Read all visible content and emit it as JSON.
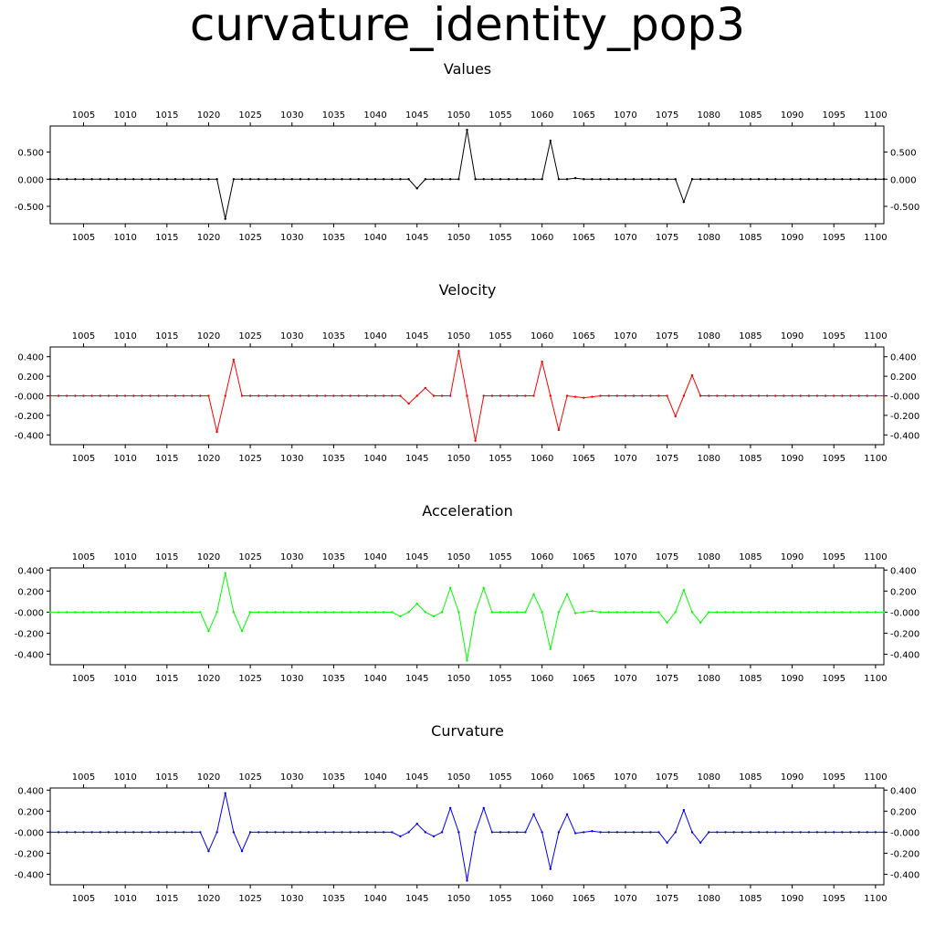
{
  "title": "curvature_identity_pop3",
  "chart_data": [
    {
      "type": "line",
      "title": "Values",
      "color": "#000000",
      "xlim": [
        1001,
        1101
      ],
      "ylim": [
        -0.82,
        0.98
      ],
      "xticks": [
        1005,
        1010,
        1015,
        1020,
        1025,
        1030,
        1035,
        1040,
        1045,
        1050,
        1055,
        1060,
        1065,
        1070,
        1075,
        1080,
        1085,
        1090,
        1095,
        1100
      ],
      "yticks": [
        0.5,
        0.0,
        -0.5
      ],
      "ytick_labels": [
        "0.500",
        "0.000",
        "-0.500"
      ],
      "series": [
        {
          "x_start": 1001,
          "values": [
            0,
            0,
            0,
            0,
            0,
            0,
            0,
            0,
            0,
            0,
            0,
            0,
            0,
            0,
            0,
            0,
            0,
            0,
            0,
            0,
            0,
            -0.73,
            0,
            0,
            0,
            0,
            0,
            0,
            0,
            0,
            0,
            0,
            0,
            0,
            0,
            0,
            0,
            0,
            0,
            0,
            0,
            0,
            0,
            0,
            -0.17,
            0,
            0,
            0,
            0,
            0,
            0.91,
            0,
            0,
            0,
            0,
            0,
            0,
            0,
            0,
            0,
            0.71,
            0,
            0,
            0.02,
            0,
            0,
            0,
            0,
            0,
            0,
            0,
            0,
            0,
            0,
            0,
            0,
            -0.42,
            0,
            0,
            0,
            0,
            0,
            0,
            0,
            0,
            0,
            0,
            0,
            0,
            0,
            0,
            0,
            0,
            0,
            0,
            0,
            0,
            0,
            0,
            0,
            0
          ]
        }
      ]
    },
    {
      "type": "line",
      "title": "Velocity",
      "color": "#ff0000",
      "xlim": [
        1001,
        1101
      ],
      "ylim": [
        -0.5,
        0.5
      ],
      "xticks": [
        1005,
        1010,
        1015,
        1020,
        1025,
        1030,
        1035,
        1040,
        1045,
        1050,
        1055,
        1060,
        1065,
        1070,
        1075,
        1080,
        1085,
        1090,
        1095,
        1100
      ],
      "yticks": [
        0.4,
        0.2,
        0.0,
        -0.2,
        -0.4
      ],
      "ytick_labels": [
        "0.400",
        "0.200",
        "-0.000",
        "-0.200",
        "-0.400"
      ],
      "series": [
        {
          "x_start": 1001,
          "values": [
            0,
            0,
            0,
            0,
            0,
            0,
            0,
            0,
            0,
            0,
            0,
            0,
            0,
            0,
            0,
            0,
            0,
            0,
            0,
            0,
            -0.37,
            0,
            0.37,
            0,
            0,
            0,
            0,
            0,
            0,
            0,
            0,
            0,
            0,
            0,
            0,
            0,
            0,
            0,
            0,
            0,
            0,
            0,
            0,
            -0.08,
            0,
            0.08,
            0,
            0,
            0,
            0.46,
            0,
            -0.46,
            0,
            0,
            0,
            0,
            0,
            0,
            0,
            0.35,
            0,
            -0.35,
            0,
            -0.01,
            -0.02,
            -0.01,
            0,
            0,
            0,
            0,
            0,
            0,
            0,
            0,
            0,
            -0.21,
            0,
            0.21,
            0,
            0,
            0,
            0,
            0,
            0,
            0,
            0,
            0,
            0,
            0,
            0,
            0,
            0,
            0,
            0,
            0,
            0,
            0,
            0,
            0,
            0,
            0
          ]
        }
      ]
    },
    {
      "type": "line",
      "title": "Acceleration",
      "color": "#00ff00",
      "xlim": [
        1001,
        1101
      ],
      "ylim": [
        -0.5,
        0.42
      ],
      "xticks": [
        1005,
        1010,
        1015,
        1020,
        1025,
        1030,
        1035,
        1040,
        1045,
        1050,
        1055,
        1060,
        1065,
        1070,
        1075,
        1080,
        1085,
        1090,
        1095,
        1100
      ],
      "yticks": [
        0.4,
        0.2,
        0.0,
        -0.2,
        -0.4
      ],
      "ytick_labels": [
        "0.400",
        "0.200",
        "-0.000",
        "-0.200",
        "-0.400"
      ],
      "series": [
        {
          "x_start": 1001,
          "values": [
            0,
            0,
            0,
            0,
            0,
            0,
            0,
            0,
            0,
            0,
            0,
            0,
            0,
            0,
            0,
            0,
            0,
            0,
            0,
            -0.18,
            0,
            0.37,
            0,
            -0.18,
            0,
            0,
            0,
            0,
            0,
            0,
            0,
            0,
            0,
            0,
            0,
            0,
            0,
            0,
            0,
            0,
            0,
            0,
            -0.04,
            0,
            0.08,
            0,
            -0.04,
            0,
            0.23,
            0,
            -0.46,
            0,
            0.23,
            0,
            0,
            0,
            0,
            0,
            0.17,
            0,
            -0.35,
            0,
            0.17,
            -0.01,
            0,
            0.01,
            0,
            0,
            0,
            0,
            0,
            0,
            0,
            0,
            -0.1,
            0,
            0.21,
            0,
            -0.1,
            0,
            0,
            0,
            0,
            0,
            0,
            0,
            0,
            0,
            0,
            0,
            0,
            0,
            0,
            0,
            0,
            0,
            0,
            0,
            0,
            0,
            0
          ]
        }
      ]
    },
    {
      "type": "line",
      "title": "Curvature",
      "color": "#0000ff",
      "xlim": [
        1001,
        1101
      ],
      "ylim": [
        -0.5,
        0.42
      ],
      "xticks": [
        1005,
        1010,
        1015,
        1020,
        1025,
        1030,
        1035,
        1040,
        1045,
        1050,
        1055,
        1060,
        1065,
        1070,
        1075,
        1080,
        1085,
        1090,
        1095,
        1100
      ],
      "yticks": [
        0.4,
        0.2,
        0.0,
        -0.2,
        -0.4
      ],
      "ytick_labels": [
        "0.400",
        "0.200",
        "-0.000",
        "-0.200",
        "-0.400"
      ],
      "series": [
        {
          "x_start": 1001,
          "values": [
            0,
            0,
            0,
            0,
            0,
            0,
            0,
            0,
            0,
            0,
            0,
            0,
            0,
            0,
            0,
            0,
            0,
            0,
            0,
            -0.18,
            0,
            0.37,
            0,
            -0.18,
            0,
            0,
            0,
            0,
            0,
            0,
            0,
            0,
            0,
            0,
            0,
            0,
            0,
            0,
            0,
            0,
            0,
            0,
            -0.04,
            0,
            0.08,
            0,
            -0.04,
            0,
            0.23,
            0,
            -0.46,
            0,
            0.23,
            0,
            0,
            0,
            0,
            0,
            0.17,
            0,
            -0.35,
            0,
            0.17,
            -0.01,
            0,
            0.01,
            0,
            0,
            0,
            0,
            0,
            0,
            0,
            0,
            -0.1,
            0,
            0.21,
            0,
            -0.1,
            0,
            0,
            0,
            0,
            0,
            0,
            0,
            0,
            0,
            0,
            0,
            0,
            0,
            0,
            0,
            0,
            0,
            0,
            0,
            0,
            0,
            0
          ]
        }
      ]
    }
  ]
}
